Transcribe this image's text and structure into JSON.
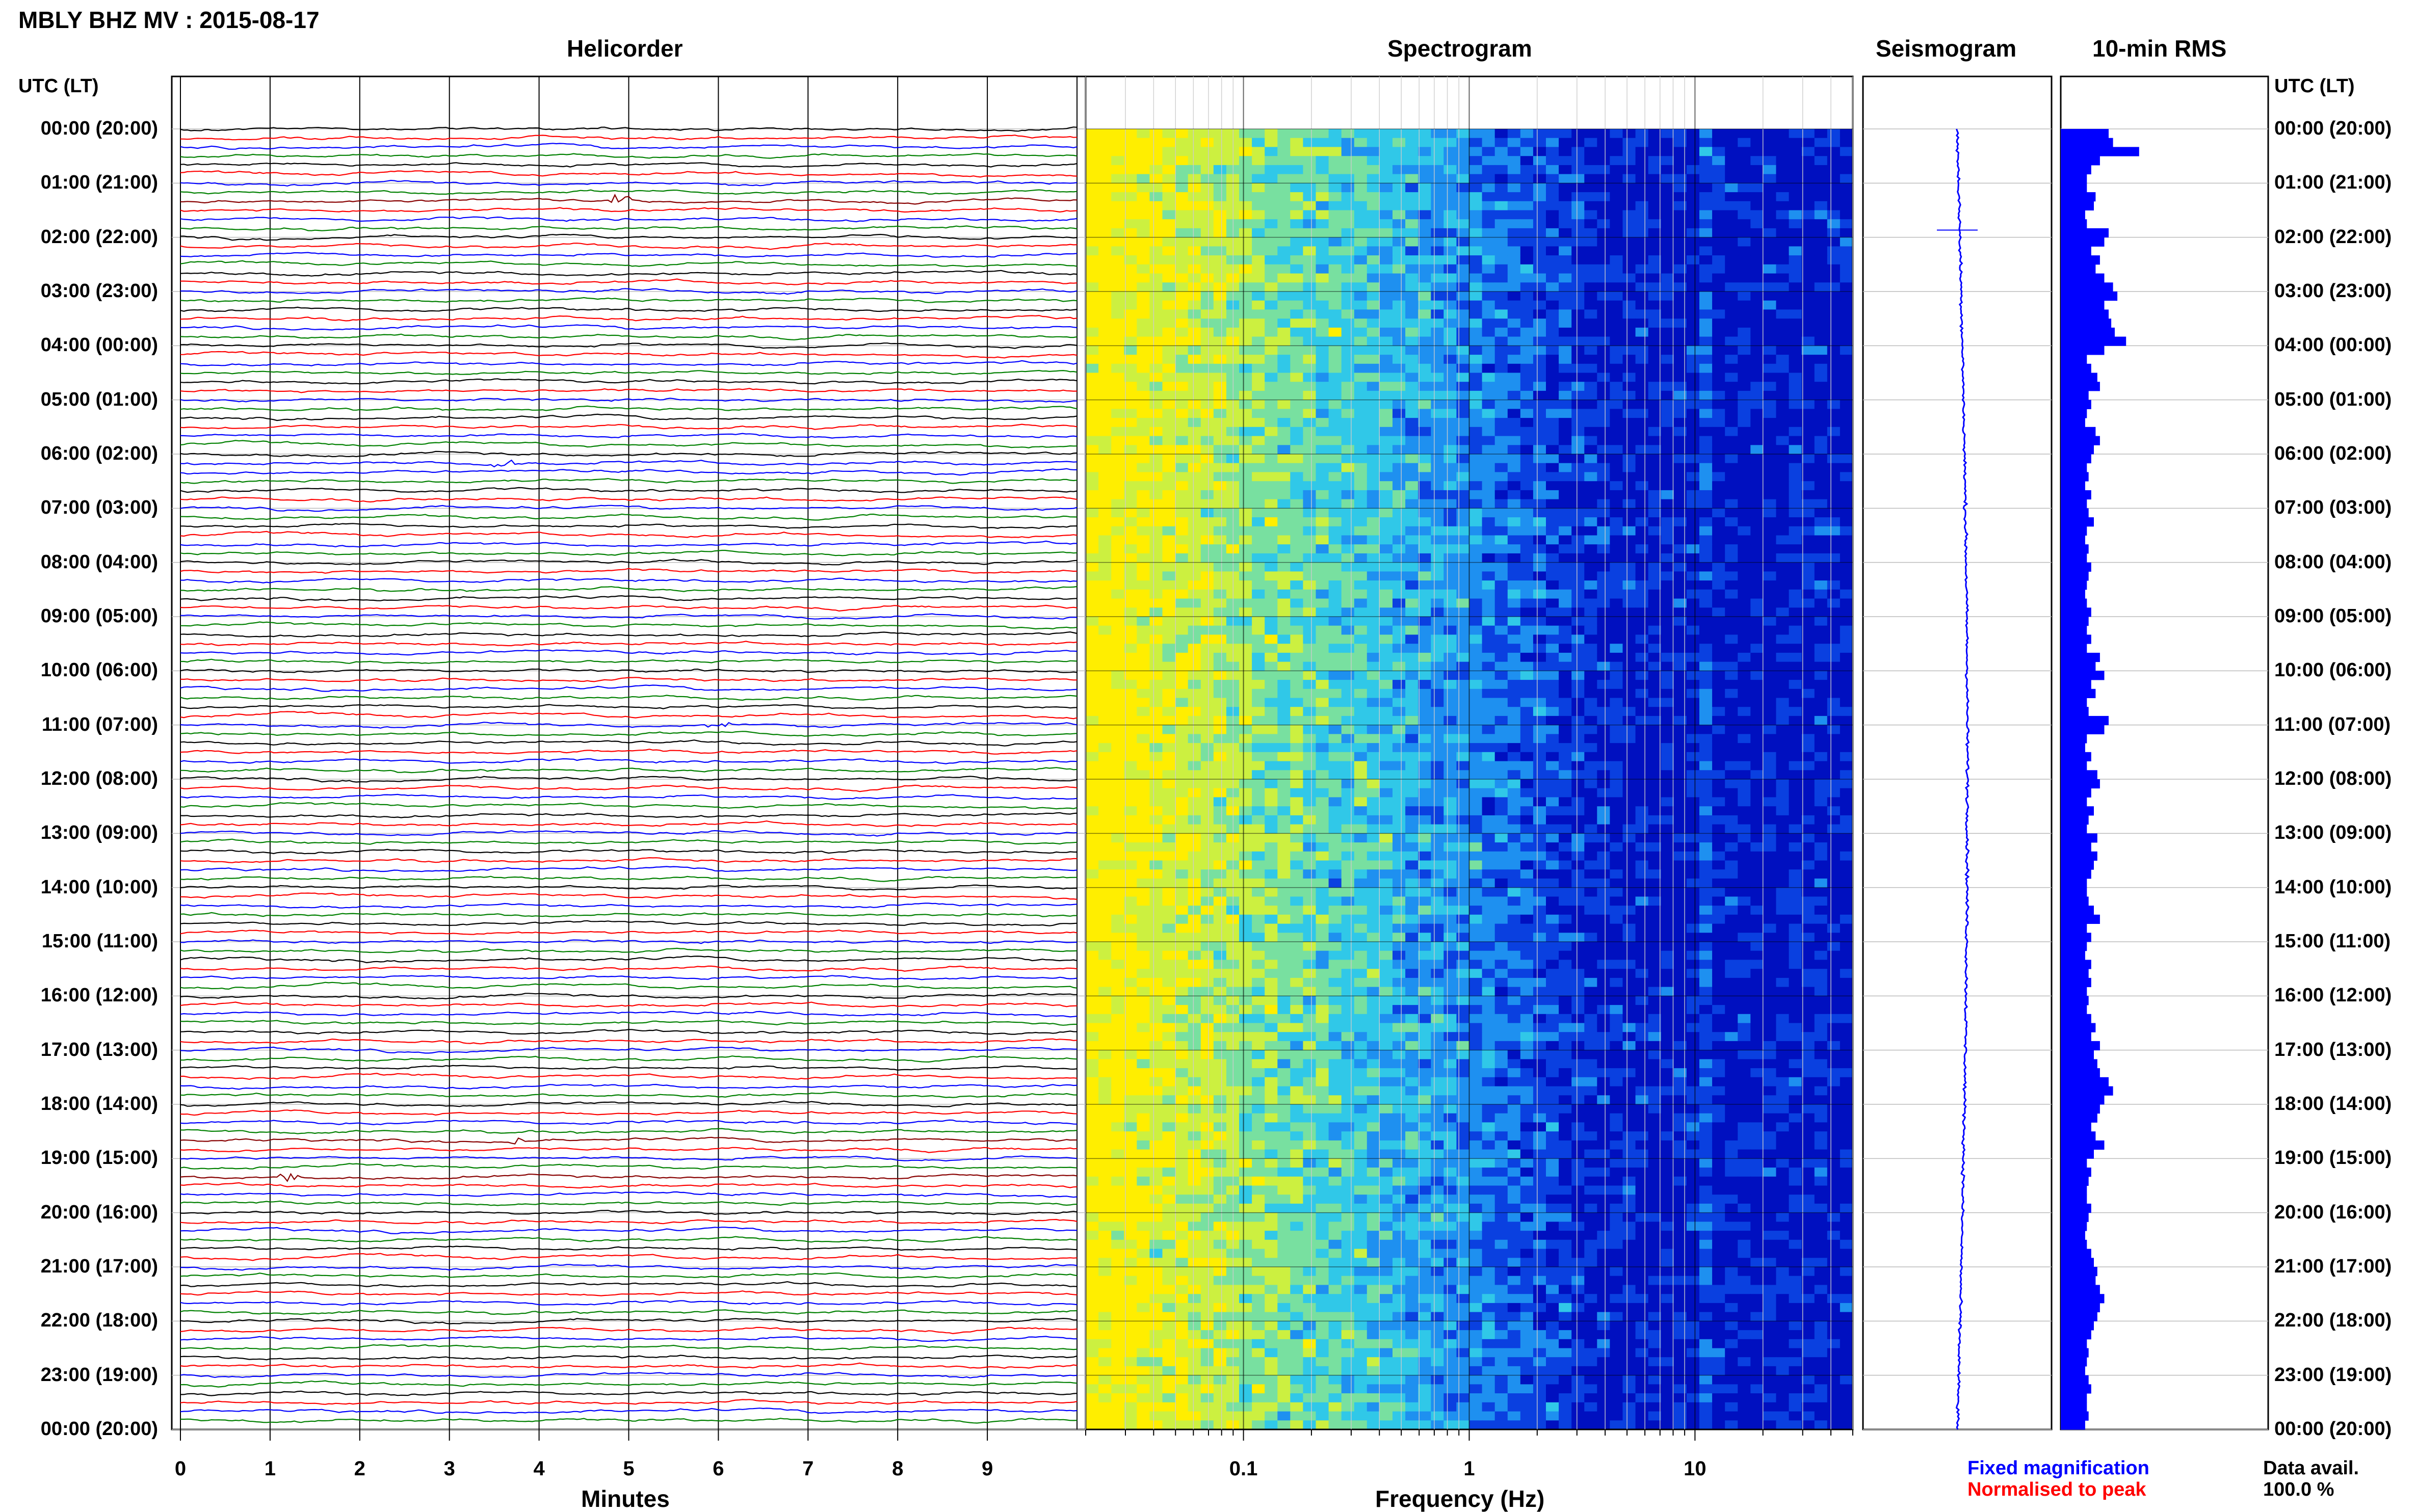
{
  "figure": {
    "title": "MBLY BHZ MV : 2015-08-17",
    "utc_label_left": "UTC (LT)",
    "utc_label_right": "UTC (LT)",
    "row_labels": [
      "00:00 (20:00)",
      "01:00 (21:00)",
      "02:00 (22:00)",
      "03:00 (23:00)",
      "04:00 (00:00)",
      "05:00 (01:00)",
      "06:00 (02:00)",
      "07:00 (03:00)",
      "08:00 (04:00)",
      "09:00 (05:00)",
      "10:00 (06:00)",
      "11:00 (07:00)",
      "12:00 (08:00)",
      "13:00 (09:00)",
      "14:00 (10:00)",
      "15:00 (11:00)",
      "16:00 (12:00)",
      "17:00 (13:00)",
      "18:00 (14:00)",
      "19:00 (15:00)",
      "20:00 (16:00)",
      "21:00 (17:00)",
      "22:00 (18:00)",
      "23:00 (19:00)",
      "00:00 (20:00)"
    ],
    "data_avail_label": "Data avail.",
    "data_avail_value": "100.0 %",
    "legend_fixed": "Fixed magnification",
    "legend_normalised": "Normalised to peak",
    "colors": {
      "fixed": "#0000ff",
      "normalised": "#ff0000"
    }
  },
  "chart_data": [
    {
      "type": "line",
      "title": "Helicorder",
      "xlabel": "Minutes",
      "x_ticks": [
        "0",
        "1",
        "2",
        "3",
        "4",
        "5",
        "6",
        "7",
        "8",
        "9"
      ],
      "xlim": [
        0,
        10
      ],
      "rows_per_hour": 6,
      "trace_colors": [
        "#000000",
        "#ff0000",
        "#0000ff",
        "#008000"
      ],
      "events": [
        {
          "row": 8,
          "minute": 4.9,
          "color": "#880000"
        },
        {
          "row": 37,
          "minute": 3.6,
          "color": "#0000ff"
        },
        {
          "row": 66,
          "minute": 6.0,
          "color": "#0000ff"
        },
        {
          "row": 112,
          "minute": 3.7,
          "color": "#880000"
        },
        {
          "row": 116,
          "minute": 1.2,
          "color": "#880000"
        }
      ]
    },
    {
      "type": "heatmap",
      "title": "Spectrogram",
      "xlabel": "Frequency (Hz)",
      "x_scale": "log",
      "xlim": [
        0.02,
        50
      ],
      "x_ticks": [
        "0.1",
        "1",
        "10"
      ],
      "colormap": [
        "#ffee00",
        "#ccf040",
        "#78e0a0",
        "#30c8e8",
        "#1e90f0",
        "#0a40e0",
        "#0010c0"
      ]
    },
    {
      "type": "line",
      "title": "Seismogram",
      "color": "#0000ff"
    },
    {
      "type": "bar",
      "title": "10-min RMS",
      "color": "#0000ff",
      "values": [
        0.55,
        0.6,
        0.9,
        0.45,
        0.35,
        0.3,
        0.3,
        0.4,
        0.38,
        0.28,
        0.3,
        0.55,
        0.5,
        0.35,
        0.45,
        0.4,
        0.5,
        0.6,
        0.65,
        0.5,
        0.55,
        0.58,
        0.62,
        0.75,
        0.5,
        0.3,
        0.35,
        0.42,
        0.45,
        0.32,
        0.35,
        0.3,
        0.28,
        0.4,
        0.45,
        0.38,
        0.35,
        0.3,
        0.32,
        0.28,
        0.35,
        0.3,
        0.32,
        0.38,
        0.3,
        0.28,
        0.32,
        0.3,
        0.35,
        0.32,
        0.3,
        0.28,
        0.3,
        0.35,
        0.32,
        0.3,
        0.35,
        0.3,
        0.45,
        0.4,
        0.5,
        0.35,
        0.4,
        0.3,
        0.32,
        0.55,
        0.5,
        0.3,
        0.28,
        0.35,
        0.3,
        0.42,
        0.45,
        0.35,
        0.3,
        0.38,
        0.32,
        0.3,
        0.42,
        0.35,
        0.42,
        0.38,
        0.35,
        0.3,
        0.3,
        0.32,
        0.38,
        0.45,
        0.3,
        0.35,
        0.3,
        0.28,
        0.35,
        0.32,
        0.35,
        0.3,
        0.32,
        0.3,
        0.35,
        0.4,
        0.35,
        0.45,
        0.38,
        0.42,
        0.45,
        0.55,
        0.6,
        0.5,
        0.45,
        0.42,
        0.35,
        0.4,
        0.5,
        0.38,
        0.3,
        0.35,
        0.32,
        0.3,
        0.3,
        0.35,
        0.32,
        0.3,
        0.28,
        0.3,
        0.35,
        0.38,
        0.42,
        0.4,
        0.45,
        0.5,
        0.45,
        0.42,
        0.38,
        0.35,
        0.3,
        0.32,
        0.3,
        0.28,
        0.32,
        0.35,
        0.3,
        0.3,
        0.32,
        0.28
      ]
    }
  ]
}
